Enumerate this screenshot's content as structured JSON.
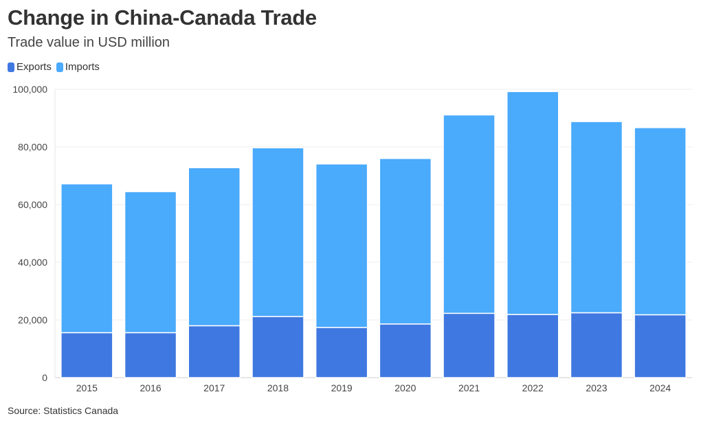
{
  "chart_data": {
    "type": "bar",
    "stacked": true,
    "title": "Change in China-Canada Trade",
    "subtitle": "Trade value in USD million",
    "categories": [
      "2015",
      "2016",
      "2017",
      "2018",
      "2019",
      "2020",
      "2021",
      "2022",
      "2023",
      "2024"
    ],
    "series": [
      {
        "name": "Exports",
        "color": "#3f78e0",
        "values": [
          15600,
          15600,
          18000,
          21200,
          17400,
          18600,
          22300,
          21900,
          22500,
          21800
        ]
      },
      {
        "name": "Imports",
        "color": "#4aaafc",
        "values": [
          51600,
          48900,
          54800,
          58500,
          56700,
          57400,
          68800,
          77300,
          66300,
          64900
        ]
      }
    ],
    "ylim": [
      0,
      100000
    ],
    "yticks": [
      0,
      20000,
      40000,
      60000,
      80000,
      100000
    ],
    "ytick_labels": [
      "0",
      "20,000",
      "40,000",
      "60,000",
      "80,000",
      "100,000"
    ],
    "xlabel": "",
    "ylabel": "",
    "grid": true,
    "legend_position": "top-left",
    "source": "Source: Statistics Canada"
  }
}
